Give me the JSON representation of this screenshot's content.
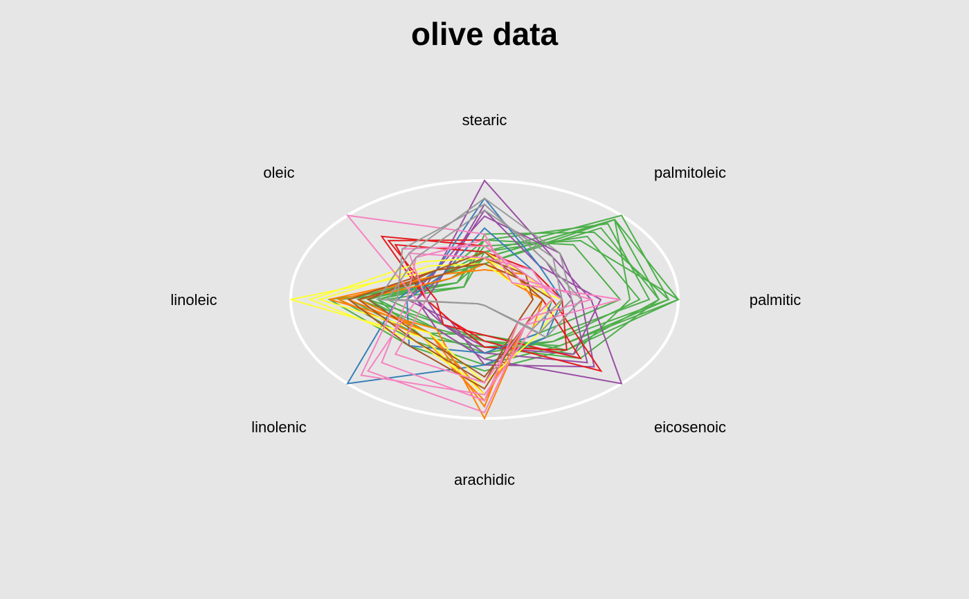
{
  "chart_data": {
    "type": "radar",
    "title": "olive data",
    "axes": [
      "palmitic",
      "palmitoleic",
      "stearic",
      "oleic",
      "linoleic",
      "linolenic",
      "arachidic",
      "eicosenoic"
    ],
    "scale": [
      0,
      1
    ],
    "grid": false,
    "outer_circle": true,
    "colors": {
      "background": "#e6e6e6",
      "circle": "#ffffff",
      "red": "#e41a1c",
      "blue": "#377eb8",
      "green": "#4daf4a",
      "purple": "#984ea3",
      "orange": "#ff7f00",
      "yellow": "#ffff33",
      "brown": "#a65628",
      "pink": "#f781bf",
      "grey": "#999999"
    },
    "series": [
      {
        "color": "#4daf4a",
        "values": [
          [
            1.0,
            0.95,
            0.35,
            0.2,
            0.55,
            0.35,
            0.35,
            0.55
          ],
          [
            0.95,
            1.0,
            0.4,
            0.15,
            0.5,
            0.3,
            0.45,
            0.5
          ],
          [
            0.9,
            0.85,
            0.3,
            0.25,
            0.6,
            0.4,
            0.3,
            0.6
          ],
          [
            0.85,
            0.9,
            0.5,
            0.2,
            0.65,
            0.35,
            0.5,
            0.45
          ],
          [
            0.8,
            0.75,
            0.4,
            0.3,
            0.7,
            0.45,
            0.4,
            0.5
          ],
          [
            0.95,
            0.8,
            0.55,
            0.15,
            0.75,
            0.5,
            0.55,
            0.55
          ],
          [
            0.75,
            0.95,
            0.3,
            0.3,
            0.6,
            0.3,
            0.35,
            0.65
          ],
          [
            1.0,
            0.7,
            0.45,
            0.2,
            0.8,
            0.55,
            0.6,
            0.6
          ],
          [
            0.7,
            0.65,
            0.5,
            0.3,
            0.65,
            0.4,
            0.45,
            0.4
          ],
          [
            0.9,
            0.95,
            0.35,
            0.25,
            0.55,
            0.45,
            0.4,
            0.7
          ]
        ]
      },
      {
        "color": "#984ea3",
        "values": [
          [
            0.55,
            0.5,
            1.0,
            0.35,
            0.35,
            0.35,
            0.5,
            1.0
          ],
          [
            0.45,
            0.45,
            0.8,
            0.3,
            0.3,
            0.3,
            0.45,
            0.75
          ],
          [
            0.5,
            0.55,
            0.7,
            0.35,
            0.4,
            0.25,
            0.55,
            0.8
          ],
          [
            0.6,
            0.4,
            0.75,
            0.3,
            0.35,
            0.3,
            0.4,
            0.65
          ]
        ]
      },
      {
        "color": "#e41a1c",
        "values": [
          [
            0.35,
            0.3,
            0.45,
            0.75,
            0.3,
            0.25,
            0.35,
            0.85
          ],
          [
            0.3,
            0.25,
            0.5,
            0.7,
            0.25,
            0.3,
            0.3,
            0.7
          ],
          [
            0.4,
            0.35,
            0.4,
            0.65,
            0.3,
            0.25,
            0.4,
            0.6
          ]
        ]
      },
      {
        "color": "#377eb8",
        "values": [
          [
            0.4,
            0.4,
            0.85,
            0.35,
            0.45,
            1.0,
            0.55,
            0.45
          ],
          [
            0.35,
            0.35,
            0.6,
            0.3,
            0.4,
            0.55,
            0.45,
            0.4
          ]
        ]
      },
      {
        "color": "#ff7f00",
        "values": [
          [
            0.3,
            0.2,
            0.35,
            0.3,
            0.8,
            0.35,
            1.0,
            0.3
          ],
          [
            0.25,
            0.25,
            0.3,
            0.35,
            0.7,
            0.4,
            0.9,
            0.25
          ],
          [
            0.35,
            0.3,
            0.25,
            0.3,
            0.75,
            0.45,
            0.85,
            0.3
          ],
          [
            0.3,
            0.25,
            0.3,
            0.25,
            0.65,
            0.4,
            0.8,
            0.35
          ]
        ]
      },
      {
        "color": "#ffff33",
        "values": [
          [
            0.35,
            0.3,
            0.4,
            0.35,
            1.0,
            0.45,
            0.8,
            0.35
          ],
          [
            0.3,
            0.25,
            0.35,
            0.45,
            0.9,
            0.5,
            0.75,
            0.3
          ],
          [
            0.4,
            0.2,
            0.3,
            0.4,
            0.85,
            0.4,
            0.7,
            0.4
          ]
        ]
      },
      {
        "color": "#a65628",
        "values": [
          [
            0.3,
            0.25,
            0.4,
            0.35,
            0.7,
            0.55,
            0.75,
            0.3
          ],
          [
            0.25,
            0.3,
            0.35,
            0.3,
            0.65,
            0.5,
            0.7,
            0.25
          ],
          [
            0.35,
            0.25,
            0.3,
            0.35,
            0.6,
            0.45,
            0.65,
            0.3
          ]
        ]
      },
      {
        "color": "#f781bf",
        "values": [
          [
            0.7,
            0.2,
            0.55,
            1.0,
            0.35,
            0.85,
            0.95,
            0.3
          ],
          [
            0.4,
            0.3,
            0.45,
            0.6,
            0.45,
            0.9,
            0.8,
            0.35
          ],
          [
            0.55,
            0.25,
            0.5,
            0.5,
            0.4,
            0.75,
            0.85,
            0.25
          ],
          [
            0.35,
            0.35,
            0.35,
            0.55,
            0.3,
            0.65,
            0.7,
            0.3
          ]
        ]
      },
      {
        "color": "#999999",
        "values": [
          [
            0.45,
            0.55,
            0.85,
            0.55,
            0.55,
            0.05,
            0.05,
            0.4
          ],
          [
            0.4,
            0.5,
            0.75,
            0.5,
            0.5,
            0.05,
            0.05,
            0.35
          ],
          [
            0.5,
            0.45,
            0.8,
            0.6,
            0.45,
            0.05,
            0.05,
            0.45
          ]
        ]
      }
    ]
  }
}
